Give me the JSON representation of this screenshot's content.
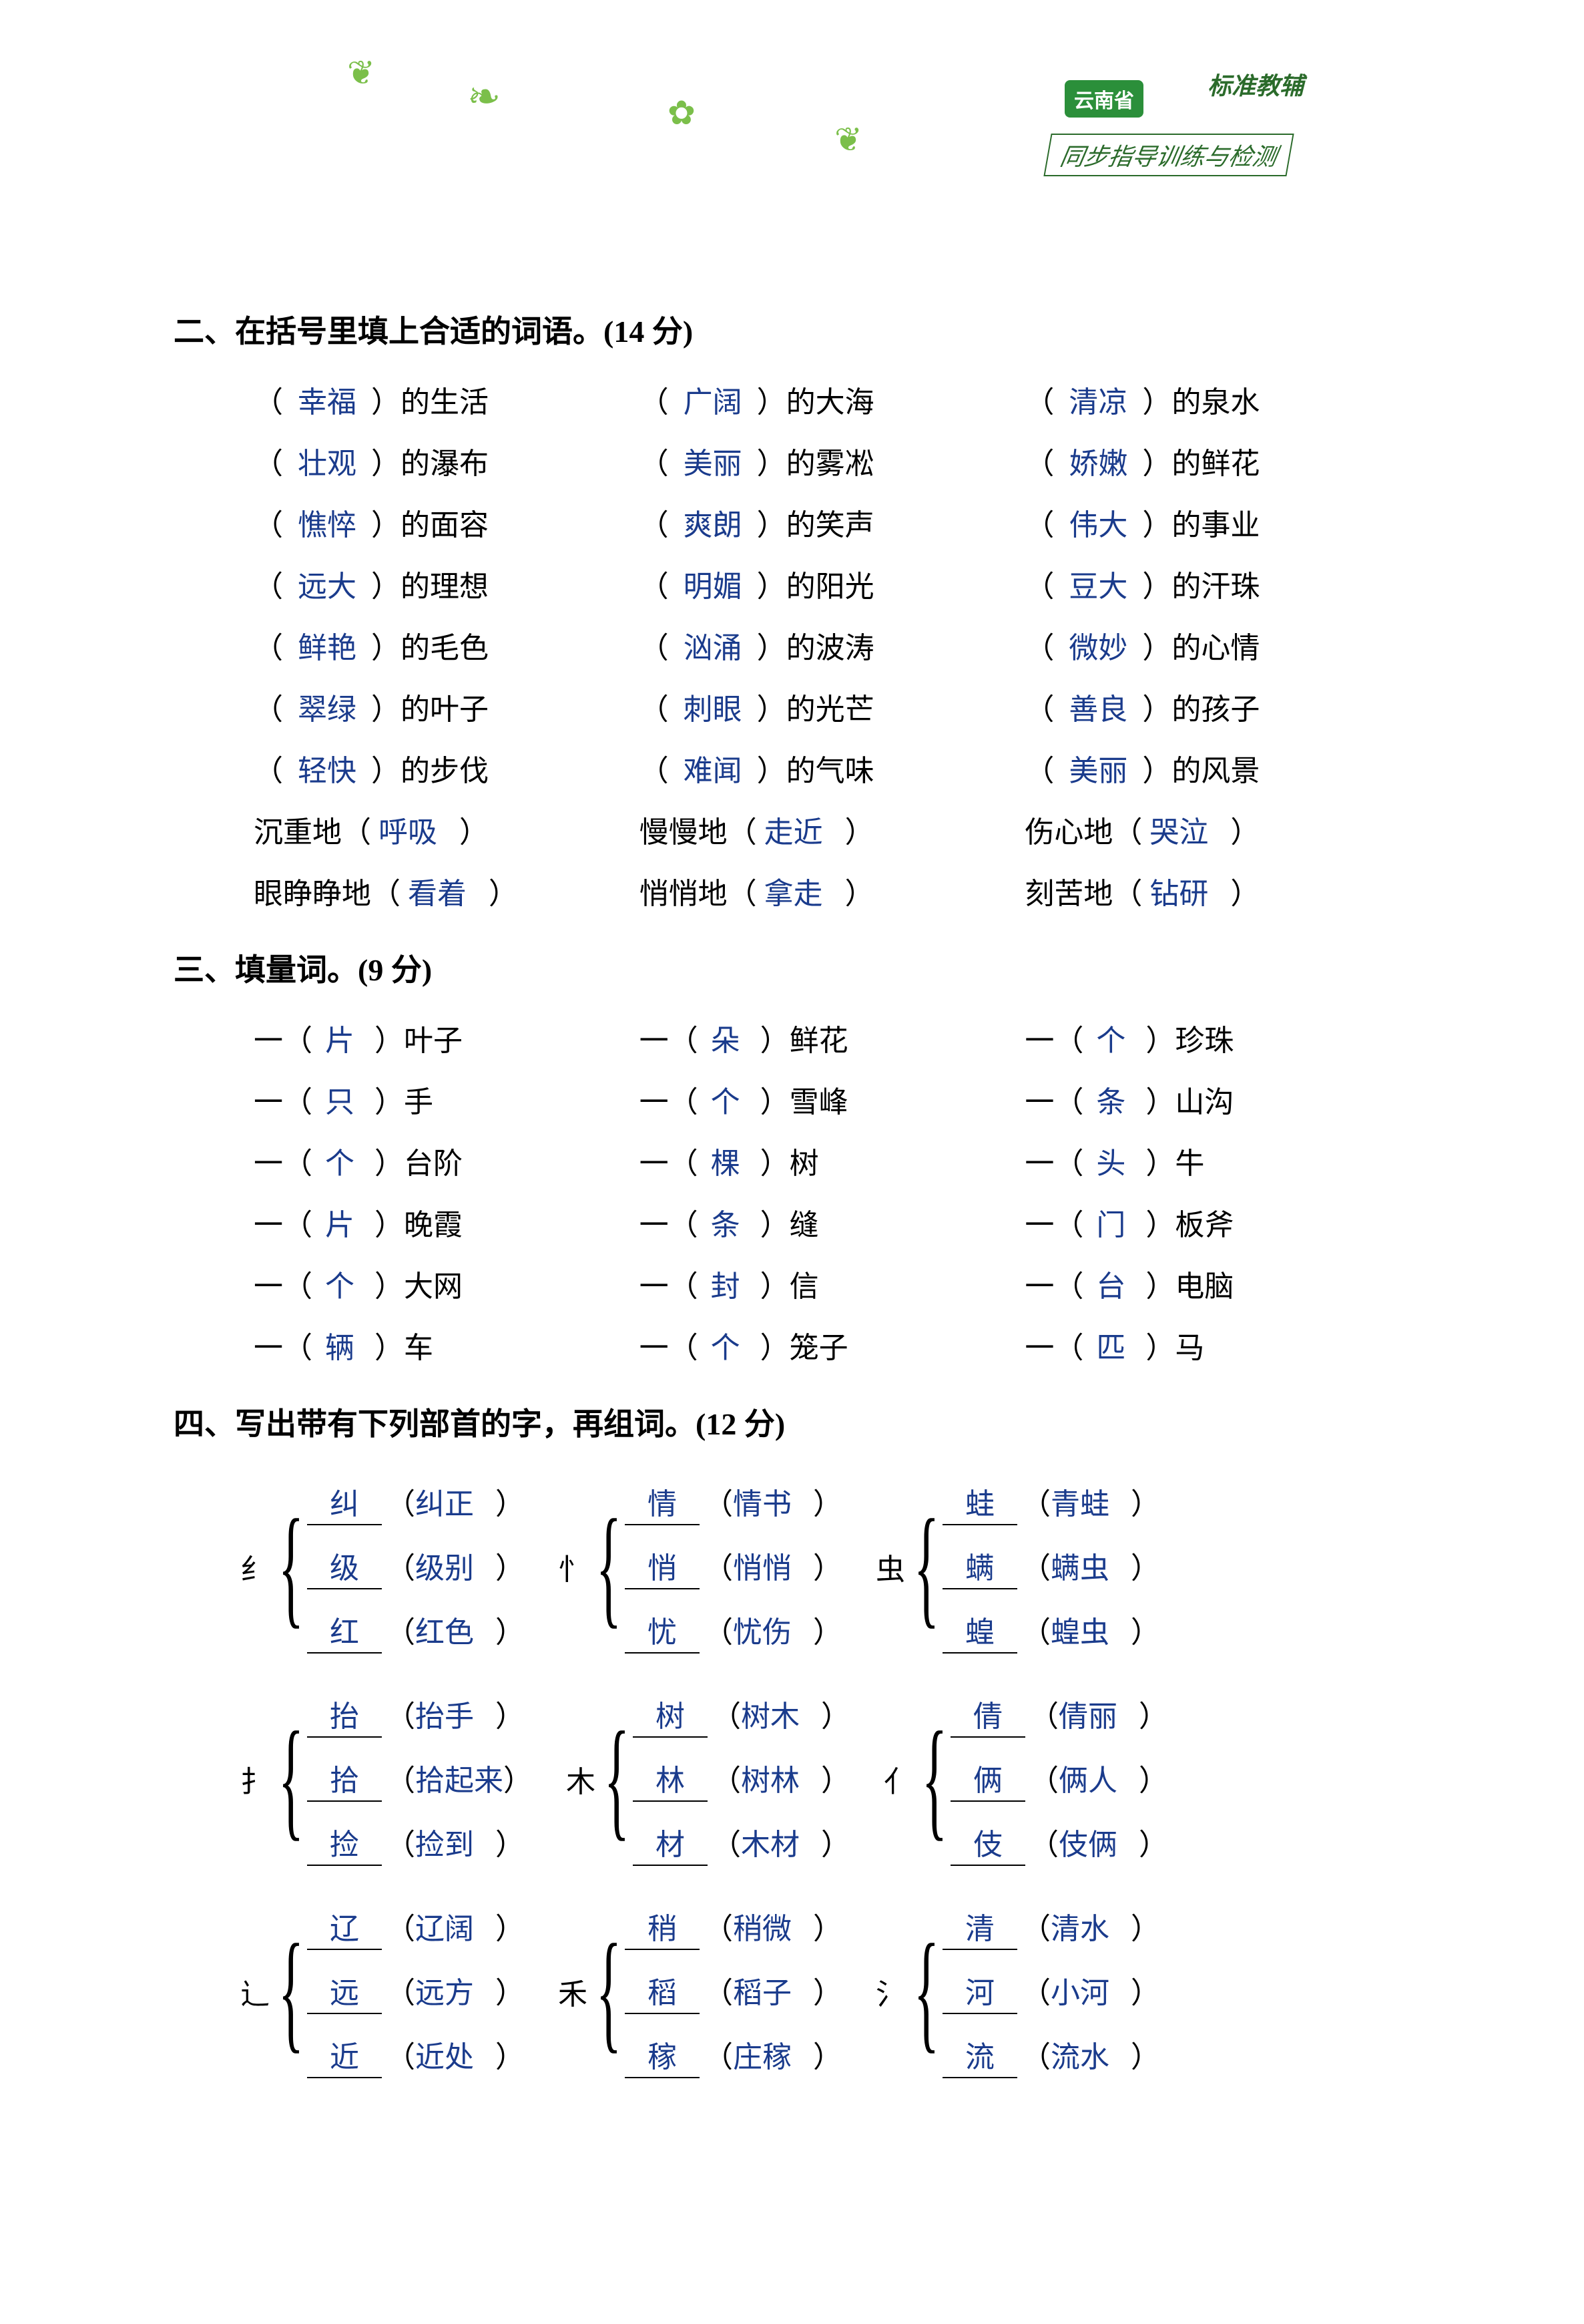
{
  "header": {
    "brand": "云南省",
    "banner": "标准教辅",
    "subtitle": "同步指导训练与检测"
  },
  "section2": {
    "title": "二、在括号里填上合适的词语。(14 分)",
    "rows": [
      [
        {
          "a": "幸福",
          "t": "）的生活"
        },
        {
          "a": "广阔",
          "t": "）的大海"
        },
        {
          "a": "清凉",
          "t": "）的泉水"
        }
      ],
      [
        {
          "a": "壮观",
          "t": "）的瀑布"
        },
        {
          "a": "美丽",
          "t": "）的雾凇"
        },
        {
          "a": "娇嫩",
          "t": "）的鲜花"
        }
      ],
      [
        {
          "a": "憔悴",
          "t": "）的面容"
        },
        {
          "a": "爽朗",
          "t": "）的笑声"
        },
        {
          "a": "伟大",
          "t": "）的事业"
        }
      ],
      [
        {
          "a": "远大",
          "t": "）的理想"
        },
        {
          "a": "明媚",
          "t": "）的阳光"
        },
        {
          "a": "豆大",
          "t": "）的汗珠"
        }
      ],
      [
        {
          "a": "鲜艳",
          "t": "）的毛色"
        },
        {
          "a": "汹涌",
          "t": "）的波涛"
        },
        {
          "a": "微妙",
          "t": "）的心情"
        }
      ],
      [
        {
          "a": "翠绿",
          "t": "）的叶子"
        },
        {
          "a": "刺眼",
          "t": "）的光芒"
        },
        {
          "a": "善良",
          "t": "）的孩子"
        }
      ],
      [
        {
          "a": "轻快",
          "t": "）的步伐"
        },
        {
          "a": "难闻",
          "t": "）的气味"
        },
        {
          "a": "美丽",
          "t": "）的风景"
        }
      ]
    ],
    "rows_suffix": [
      [
        {
          "p": "沉重地（",
          "a": "呼吸"
        },
        {
          "p": "慢慢地（",
          "a": "走近"
        },
        {
          "p": "伤心地（",
          "a": "哭泣"
        }
      ],
      [
        {
          "p": "眼睁睁地（",
          "a": "看着"
        },
        {
          "p": "悄悄地（",
          "a": "拿走"
        },
        {
          "p": "刻苦地（",
          "a": "钻研"
        }
      ]
    ]
  },
  "section3": {
    "title": "三、填量词。(9 分)",
    "rows": [
      [
        {
          "a": "片",
          "t": "）叶子"
        },
        {
          "a": "朵",
          "t": "）鲜花"
        },
        {
          "a": "个",
          "t": "）珍珠"
        }
      ],
      [
        {
          "a": "只",
          "t": "）手"
        },
        {
          "a": "个",
          "t": "）雪峰"
        },
        {
          "a": "条",
          "t": "）山沟"
        }
      ],
      [
        {
          "a": "个",
          "t": "）台阶"
        },
        {
          "a": "棵",
          "t": "）树"
        },
        {
          "a": "头",
          "t": "）牛"
        }
      ],
      [
        {
          "a": "片",
          "t": "）晚霞"
        },
        {
          "a": "条",
          "t": "）缝"
        },
        {
          "a": "门",
          "t": "）板斧"
        }
      ],
      [
        {
          "a": "个",
          "t": "）大网"
        },
        {
          "a": "封",
          "t": "）信"
        },
        {
          "a": "台",
          "t": "）电脑"
        }
      ],
      [
        {
          "a": "辆",
          "t": "）车"
        },
        {
          "a": "个",
          "t": "）笼子"
        },
        {
          "a": "匹",
          "t": "）马"
        }
      ]
    ]
  },
  "section4": {
    "title": "四、写出带有下列部首的字，再组词。(12 分)",
    "groups": [
      [
        {
          "radical": "纟",
          "lines": [
            {
              "c": "纠",
              "w": "纠正"
            },
            {
              "c": "级",
              "w": "级别"
            },
            {
              "c": "红",
              "w": "红色"
            }
          ]
        },
        {
          "radical": "忄",
          "lines": [
            {
              "c": "情",
              "w": "情书"
            },
            {
              "c": "悄",
              "w": "悄悄"
            },
            {
              "c": "忧",
              "w": "忧伤"
            }
          ]
        },
        {
          "radical": "虫",
          "lines": [
            {
              "c": "蛙",
              "w": "青蛙"
            },
            {
              "c": "螨",
              "w": "螨虫"
            },
            {
              "c": "蝗",
              "w": "蝗虫"
            }
          ]
        }
      ],
      [
        {
          "radical": "扌",
          "lines": [
            {
              "c": "抬",
              "w": "抬手"
            },
            {
              "c": "拾",
              "w": "拾起来"
            },
            {
              "c": "捡",
              "w": "捡到"
            }
          ]
        },
        {
          "radical": "木",
          "lines": [
            {
              "c": "树",
              "w": "树木"
            },
            {
              "c": "林",
              "w": "树林"
            },
            {
              "c": "材",
              "w": "木材"
            }
          ]
        },
        {
          "radical": "亻",
          "lines": [
            {
              "c": "倩",
              "w": "倩丽"
            },
            {
              "c": "俩",
              "w": "俩人"
            },
            {
              "c": "伎",
              "w": "伎俩"
            }
          ]
        }
      ],
      [
        {
          "radical": "辶",
          "lines": [
            {
              "c": "辽",
              "w": "辽阔"
            },
            {
              "c": "远",
              "w": "远方"
            },
            {
              "c": "近",
              "w": "近处"
            }
          ]
        },
        {
          "radical": "禾",
          "lines": [
            {
              "c": "稍",
              "w": "稍微"
            },
            {
              "c": "稻",
              "w": "稻子"
            },
            {
              "c": "稼",
              "w": "庄稼"
            }
          ]
        },
        {
          "radical": "氵",
          "lines": [
            {
              "c": "清",
              "w": "清水"
            },
            {
              "c": "河",
              "w": "小河"
            },
            {
              "c": "流",
              "w": "流水"
            }
          ]
        }
      ]
    ]
  },
  "style": {
    "answer_color": "#1a3b8c",
    "text_color": "#000000",
    "bg_color": "#ffffff",
    "banner_color": "#2b6b2b",
    "font_main": "SimSun",
    "font_answer": "KaiTi",
    "title_fontsize": 46,
    "body_fontsize": 44
  }
}
